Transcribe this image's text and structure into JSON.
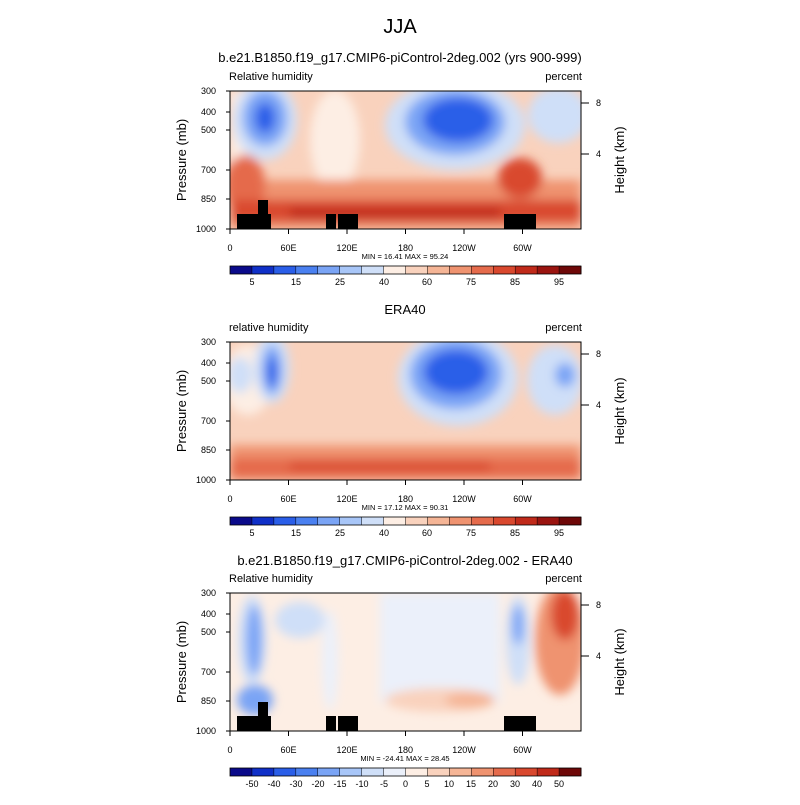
{
  "main_title": "JJA",
  "chart_data": [
    {
      "type": "contour",
      "title": "b.e21.B1850.f19_g17.CMIP6-piControl-2deg.002 (yrs 900-999)",
      "left_label": "Relative humidity",
      "right_label": "percent",
      "ylabel": "Pressure (mb)",
      "ylabel_right": "Height (km)",
      "x_ticks": [
        "0",
        "60E",
        "120E",
        "180",
        "120W",
        "60W"
      ],
      "y_ticks": [
        "300",
        "400",
        "500",
        "700",
        "850",
        "1000"
      ],
      "y_right_ticks": [
        "8",
        "4"
      ],
      "stats": "MIN = 16.41  MAX = 95.24",
      "colorbar_labels": [
        "5",
        "15",
        "25",
        "40",
        "60",
        "75",
        "85",
        "95"
      ],
      "colorbar_colors": [
        "#0a0a8a",
        "#1030c8",
        "#2a5ee8",
        "#4a80f0",
        "#7aa4f5",
        "#a8c6f8",
        "#cfdff8",
        "#fdeee4",
        "#f9d2bd",
        "#f5b596",
        "#ef9370",
        "#e56b4c",
        "#d9482e",
        "#c02a1a",
        "#9a1410",
        "#6e0808"
      ],
      "range": [
        16.41,
        95.24
      ]
    },
    {
      "type": "contour",
      "title": "ERA40",
      "left_label": "relative humidity",
      "right_label": "percent",
      "ylabel": "Pressure (mb)",
      "ylabel_right": "Height (km)",
      "x_ticks": [
        "0",
        "60E",
        "120E",
        "180",
        "120W",
        "60W"
      ],
      "y_ticks": [
        "300",
        "400",
        "500",
        "700",
        "850",
        "1000"
      ],
      "y_right_ticks": [
        "8",
        "4"
      ],
      "stats": "MIN = 17.12  MAX = 90.31",
      "colorbar_labels": [
        "5",
        "15",
        "25",
        "40",
        "60",
        "75",
        "85",
        "95"
      ],
      "colorbar_colors": [
        "#0a0a8a",
        "#1030c8",
        "#2a5ee8",
        "#4a80f0",
        "#7aa4f5",
        "#a8c6f8",
        "#cfdff8",
        "#fdeee4",
        "#f9d2bd",
        "#f5b596",
        "#ef9370",
        "#e56b4c",
        "#d9482e",
        "#c02a1a",
        "#9a1410",
        "#6e0808"
      ],
      "range": [
        17.12,
        90.31
      ]
    },
    {
      "type": "contour",
      "title": "b.e21.B1850.f19_g17.CMIP6-piControl-2deg.002 - ERA40",
      "left_label": "Relative humidity",
      "right_label": "percent",
      "ylabel": "Pressure (mb)",
      "ylabel_right": "Height (km)",
      "x_ticks": [
        "0",
        "60E",
        "120E",
        "180",
        "120W",
        "60W"
      ],
      "y_ticks": [
        "300",
        "400",
        "500",
        "700",
        "850",
        "1000"
      ],
      "y_right_ticks": [
        "8",
        "4"
      ],
      "stats": "MIN = -24.41  MAX = 28.45",
      "colorbar_labels": [
        "-50",
        "-40",
        "-30",
        "-20",
        "-15",
        "-10",
        "-5",
        "0",
        "5",
        "10",
        "15",
        "20",
        "30",
        "40",
        "50"
      ],
      "colorbar_colors": [
        "#0a0a8a",
        "#1030c8",
        "#2a5ee8",
        "#4a80f0",
        "#7aa4f5",
        "#a8c6f8",
        "#cfdff8",
        "#ebf0fa",
        "#fdeee4",
        "#f9d2bd",
        "#f5b596",
        "#ef9370",
        "#e56b4c",
        "#d9482e",
        "#c02a1a",
        "#6e0808"
      ],
      "range": [
        -24.41,
        28.45
      ]
    }
  ]
}
